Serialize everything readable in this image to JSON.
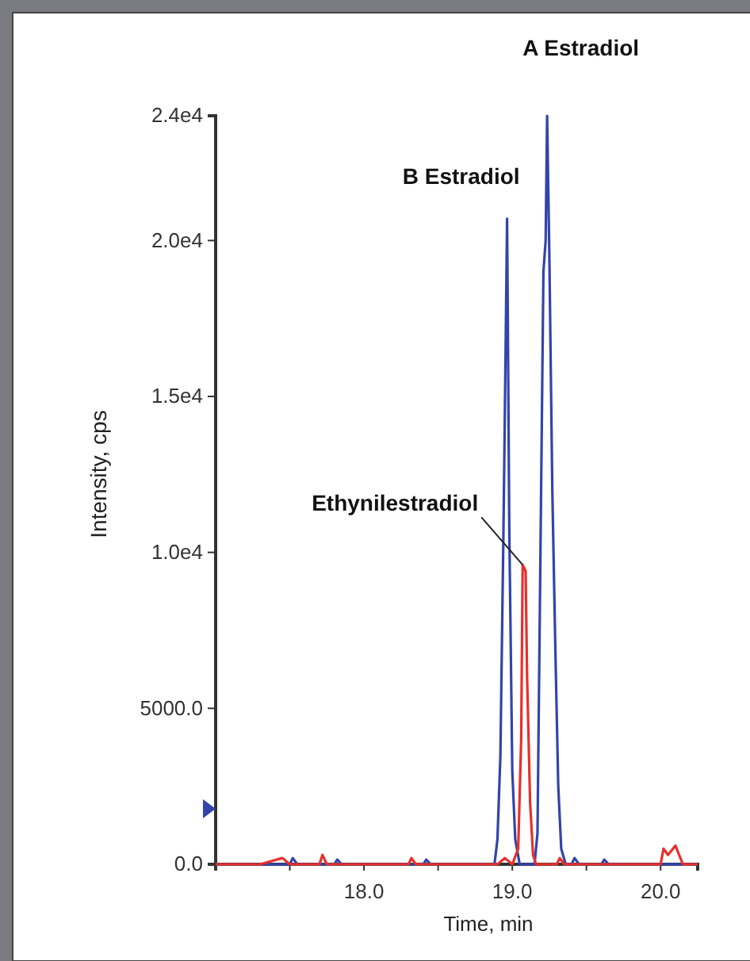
{
  "chart_data": {
    "type": "line",
    "xlabel": "Time, min",
    "ylabel": "Intensity, cps",
    "xlim": [
      17.0,
      20.25
    ],
    "ylim": [
      0,
      24000
    ],
    "xticks": [
      {
        "value": 17.5,
        "label": null
      },
      {
        "value": 18,
        "label": "18.0"
      },
      {
        "value": 18.5,
        "label": null
      },
      {
        "value": 19,
        "label": "19.0"
      },
      {
        "value": 19.5,
        "label": null
      },
      {
        "value": 20,
        "label": "20.0"
      }
    ],
    "yticks": [
      {
        "value": 0,
        "label": "0.0"
      },
      {
        "value": 5000,
        "label": "5000.0"
      },
      {
        "value": 10000,
        "label": "1.0e4"
      },
      {
        "value": 15000,
        "label": "1.5e4"
      },
      {
        "value": 20000,
        "label": "2.0e4"
      },
      {
        "value": 24000,
        "label": "2.4e4"
      }
    ],
    "grid": false,
    "marker": "none",
    "line_style": "solid",
    "series": [
      {
        "color": "#3344aa",
        "x": [
          17.0,
          17.5,
          17.52,
          17.55,
          17.8,
          17.82,
          17.85,
          18.0,
          18.4,
          18.42,
          18.45,
          18.6,
          18.88,
          18.9,
          18.92,
          18.94,
          18.955,
          18.965,
          18.98,
          19.0,
          19.02,
          19.05,
          19.15,
          19.17,
          19.19,
          19.21,
          19.225,
          19.235,
          19.25,
          19.27,
          19.29,
          19.31,
          19.33,
          19.36,
          19.4,
          19.42,
          19.45,
          19.6,
          19.62,
          19.65,
          20.0,
          20.25
        ],
        "values": [
          0,
          0,
          200,
          0,
          0,
          150,
          0,
          0,
          0,
          150,
          0,
          0,
          0,
          800,
          3500,
          10500,
          16500,
          20700,
          10700,
          3000,
          800,
          0,
          0,
          1000,
          10000,
          19000,
          20000,
          24000,
          19500,
          12000,
          7000,
          2500,
          500,
          0,
          0,
          200,
          0,
          0,
          150,
          0,
          0,
          0
        ]
      },
      {
        "color": "#e8302c",
        "x": [
          17.0,
          17.3,
          17.45,
          17.5,
          17.7,
          17.72,
          17.75,
          18.3,
          18.32,
          18.35,
          18.9,
          18.95,
          19.0,
          19.04,
          19.06,
          19.07,
          19.09,
          19.1,
          19.12,
          19.14,
          19.16,
          19.3,
          19.32,
          19.35,
          20.0,
          20.02,
          20.05,
          20.1,
          20.15,
          20.25
        ],
        "values": [
          0,
          0,
          200,
          0,
          0,
          300,
          0,
          0,
          200,
          0,
          0,
          200,
          0,
          500,
          4000,
          9600,
          9400,
          6000,
          2000,
          300,
          0,
          0,
          200,
          0,
          0,
          500,
          300,
          600,
          0,
          0
        ]
      }
    ],
    "annotations": [
      {
        "text": "A Estradiol",
        "x": 19.235,
        "y": 24000
      },
      {
        "text": "B Estradiol",
        "x": 18.965,
        "y": 20700
      },
      {
        "text": "Ethynilestradiol",
        "x": 19.07,
        "y": 9600
      }
    ]
  }
}
